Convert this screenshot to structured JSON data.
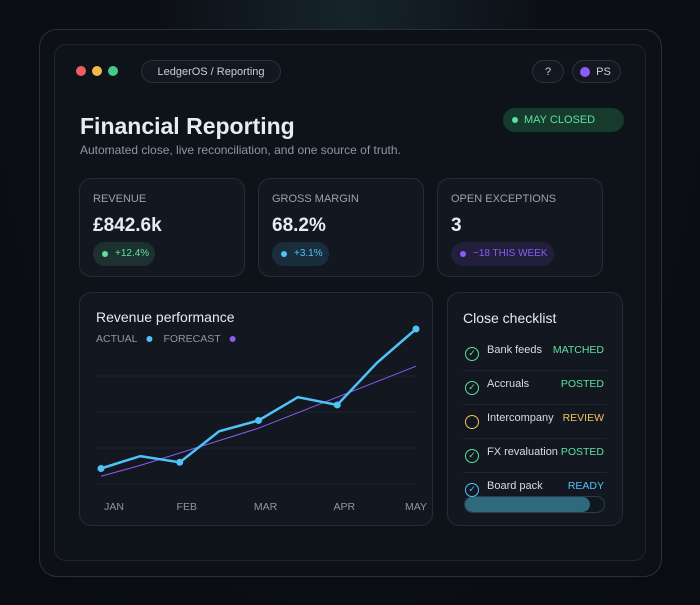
{
  "header": {
    "breadcrumb": "LedgerOS / Reporting",
    "help": "?",
    "user": "PS",
    "title": "Financial Reporting",
    "subtitle": "Automated close, live reconciliation, and one source of truth.",
    "status": "MAY CLOSED"
  },
  "kpis": [
    {
      "label": "REVENUE",
      "value": "£842.6k",
      "delta": "+12.4%",
      "color": "#5ee0a0"
    },
    {
      "label": "GROSS MARGIN",
      "value": "68.2%",
      "delta": "+3.1%",
      "color": "#4fc3f7"
    },
    {
      "label": "OPEN EXCEPTIONS",
      "value": "3",
      "delta": "−18 THIS WEEK",
      "color": "#8b5cf6"
    }
  ],
  "chart_data": {
    "type": "line",
    "title": "Revenue performance",
    "categories": [
      "JAN",
      null,
      "FEB",
      null,
      "MAR",
      null,
      "APR",
      null,
      "MAY"
    ],
    "series": [
      {
        "name": "ACTUAL",
        "color": "#4fc3f7",
        "values": [
          10,
          18,
          14,
          34,
          41,
          56,
          51,
          78,
          100
        ]
      },
      {
        "name": "FORECAST",
        "color": "#8b5cf6",
        "values": [
          5,
          12,
          20,
          28,
          36,
          46,
          56,
          66,
          76
        ]
      }
    ],
    "ylim": [
      0,
      100
    ]
  },
  "checklist": {
    "title": "Close checklist",
    "items": [
      {
        "name": "Bank feeds",
        "status": "MATCHED",
        "color": "#5ee0a0"
      },
      {
        "name": "Accruals",
        "status": "POSTED",
        "color": "#5ee0a0"
      },
      {
        "name": "Intercompany",
        "status": "REVIEW",
        "color": "#f5c060"
      },
      {
        "name": "FX revaluation",
        "status": "POSTED",
        "color": "#5ee0a0"
      },
      {
        "name": "Board pack",
        "status": "READY",
        "color": "#4fc3f7"
      }
    ],
    "progress": 90
  }
}
